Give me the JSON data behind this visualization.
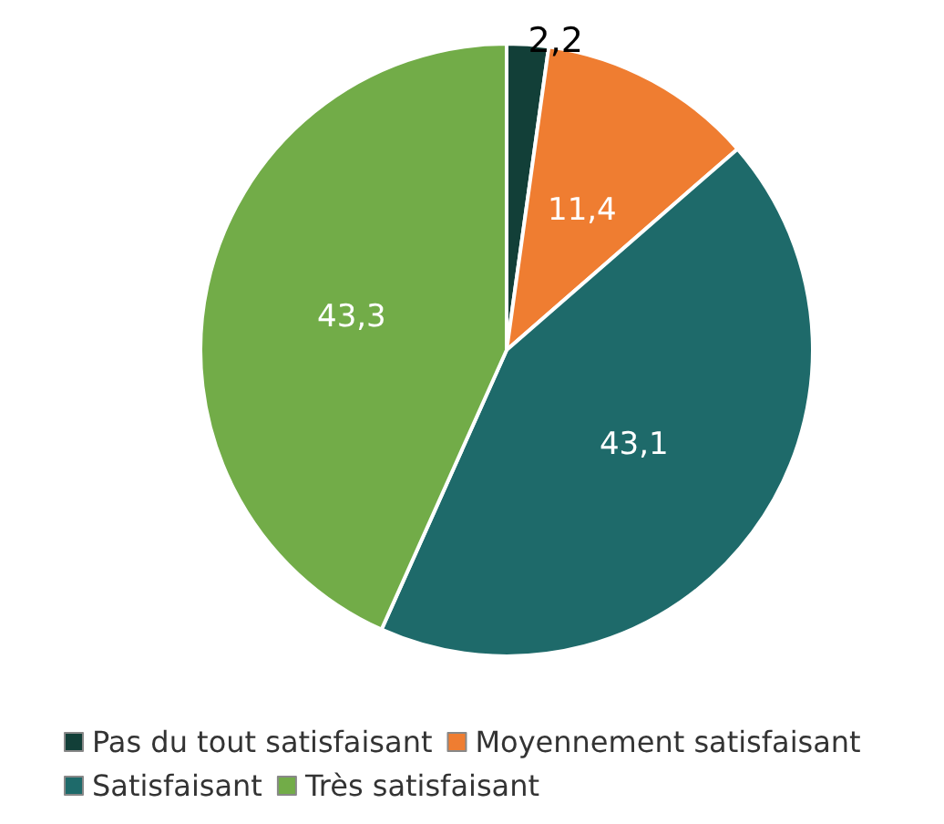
{
  "chart_data": {
    "type": "pie",
    "categories": [
      "Pas du tout satisfaisant",
      "Moyennement satisfaisant",
      "Satisfaisant",
      "Très satisfaisant"
    ],
    "values": [
      2.2,
      11.4,
      43.1,
      43.3
    ],
    "value_labels": [
      "2,2",
      "11,4",
      "43,1",
      "43,3"
    ],
    "colors": [
      "#123f38",
      "#ef7d31",
      "#1e6a6a",
      "#72ac48"
    ],
    "legend": "bottom"
  }
}
